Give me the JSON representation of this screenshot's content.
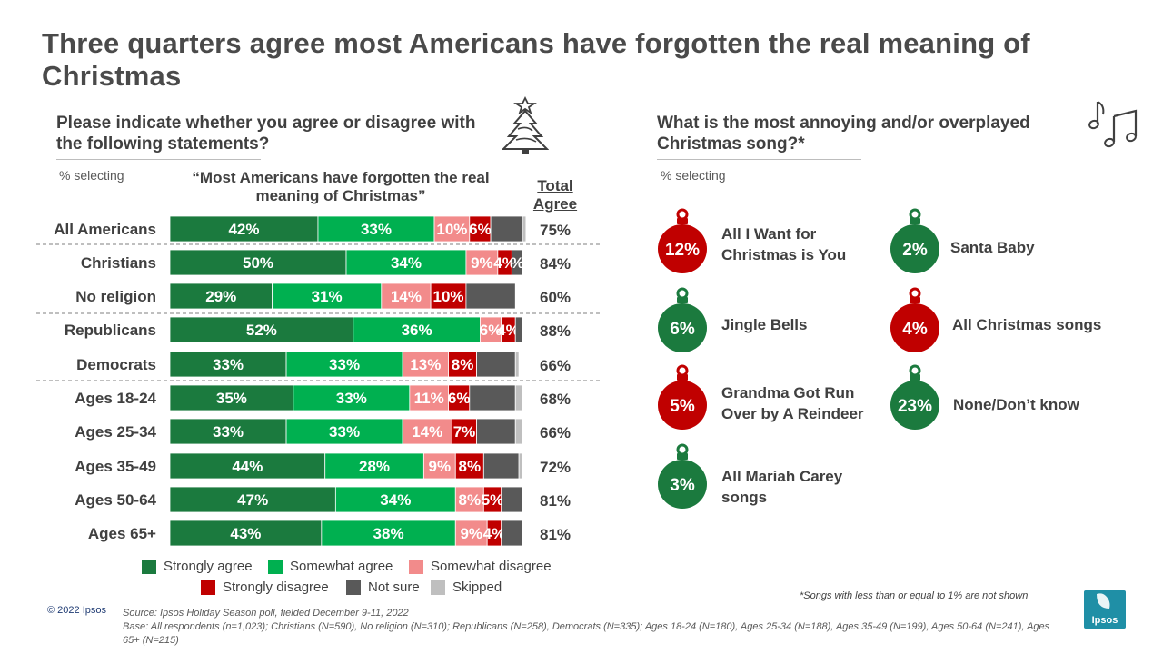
{
  "title": "Three quarters agree most Americans have forgotten the real meaning of Christmas",
  "left_question": "Please indicate whether you agree or disagree with the following statements?",
  "left_selecting": "% selecting",
  "statement": "“Most Americans have forgotten the real meaning of Christmas”",
  "total_agree_label": "Total Agree",
  "right_question": "What is the most annoying and/or overplayed Christmas song?*",
  "right_selecting": "% selecting",
  "colors": {
    "strongly_agree": "#1b7a3e",
    "somewhat_agree": "#00b050",
    "somewhat_disagree": "#f28b8b",
    "strongly_disagree": "#c00000",
    "not_sure": "#595959",
    "skipped": "#bfbfbf",
    "ornament_red": "#c00000",
    "ornament_green": "#1b7a3e"
  },
  "chart_data": {
    "type": "bar",
    "orientation": "horizontal",
    "stacked": true,
    "title": "Most Americans have forgotten the real meaning of Christmas",
    "xlim": [
      0,
      100
    ],
    "categories": [
      "All Americans",
      "Christians",
      "No religion",
      "Republicans",
      "Democrats",
      "Ages 18-24",
      "Ages 25-34",
      "Ages 35-49",
      "Ages 50-64",
      "Ages 65+"
    ],
    "series": [
      {
        "name": "Strongly agree",
        "key": "strongly_agree",
        "values": [
          42,
          50,
          29,
          52,
          33,
          35,
          33,
          44,
          47,
          43
        ],
        "labels": [
          "42%",
          "50%",
          "29%",
          "52%",
          "33%",
          "35%",
          "33%",
          "44%",
          "47%",
          "43%"
        ]
      },
      {
        "name": "Somewhat agree",
        "key": "somewhat_agree",
        "values": [
          33,
          34,
          31,
          36,
          33,
          33,
          33,
          28,
          34,
          38
        ],
        "labels": [
          "33%",
          "34%",
          "31%",
          "36%",
          "33%",
          "33%",
          "33%",
          "28%",
          "34%",
          "38%"
        ]
      },
      {
        "name": "Somewhat disagree",
        "key": "somewhat_disagree",
        "values": [
          10,
          9,
          14,
          6,
          13,
          11,
          14,
          9,
          8,
          9
        ],
        "labels": [
          "10%",
          "9%",
          "14%",
          "6%",
          "13%",
          "11%",
          "14%",
          "9%",
          "8%",
          "9%"
        ]
      },
      {
        "name": "Strongly disagree",
        "key": "strongly_disagree",
        "values": [
          6,
          4,
          10,
          4,
          8,
          6,
          7,
          8,
          5,
          4
        ],
        "labels": [
          "6%",
          "4%",
          "10%",
          "4%",
          "8%",
          "6%",
          "7%",
          "8%",
          "5%",
          "4%"
        ]
      },
      {
        "name": "Not sure",
        "key": "not_sure",
        "values": [
          9,
          3,
          14,
          2,
          11,
          13,
          11,
          10,
          6,
          6
        ],
        "labels": [
          "",
          "%",
          "",
          "",
          "",
          "",
          "",
          "",
          "",
          ""
        ]
      },
      {
        "name": "Skipped",
        "key": "skipped",
        "values": [
          1,
          0,
          0,
          0,
          1,
          2,
          2,
          1,
          0,
          0
        ],
        "labels": [
          "",
          "",
          "",
          "",
          "",
          "",
          "",
          "",
          "",
          ""
        ]
      }
    ],
    "total_agree": [
      "75%",
      "84%",
      "60%",
      "88%",
      "66%",
      "68%",
      "66%",
      "72%",
      "81%",
      "81%"
    ],
    "legend": [
      "Strongly agree",
      "Somewhat agree",
      "Somewhat disagree",
      "Strongly disagree",
      "Not sure",
      "Skipped"
    ]
  },
  "songs": [
    {
      "value": "12%",
      "label": "All I Want for Christmas is You",
      "color": "red"
    },
    {
      "value": "6%",
      "label": "Jingle Bells",
      "color": "green"
    },
    {
      "value": "5%",
      "label": "Grandma Got Run Over by A Reindeer",
      "color": "red"
    },
    {
      "value": "3%",
      "label": "All Mariah Carey songs",
      "color": "green"
    },
    {
      "value": "2%",
      "label": "Santa Baby",
      "color": "green"
    },
    {
      "value": "4%",
      "label": "All Christmas songs",
      "color": "red"
    },
    {
      "value": "23%",
      "label": "None/Don’t know",
      "color": "green"
    }
  ],
  "footnote": "*Songs with less than or equal to 1% are not shown",
  "copyright": "© 2022 Ipsos",
  "source": "Source: Ipsos Holiday Season poll, fielded December 9-11, 2022",
  "base": "Base: All respondents (n=1,023); Christians (N=590), No religion (N=310); Republicans (N=258), Democrats (N=335); Ages 18-24 (N=180), Ages 25-34 (N=188), Ages 35-49 (N=199), Ages 50-64 (N=241), Ages 65+ (N=215)",
  "logo_text": "Ipsos"
}
